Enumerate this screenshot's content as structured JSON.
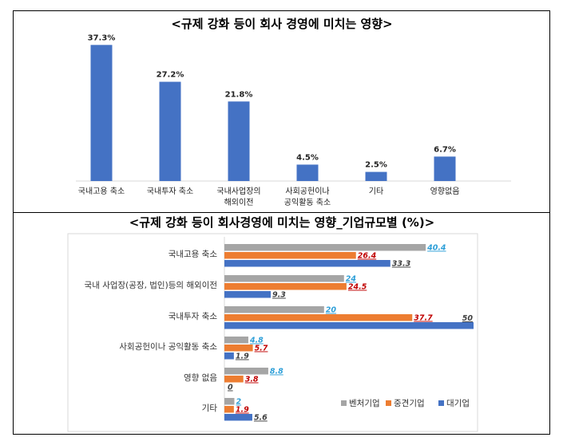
{
  "chart_data": [
    {
      "type": "bar",
      "title": "<규제 강화 등이 회사 경영에 미치는 영향>",
      "categories": [
        [
          "국내고용 축소"
        ],
        [
          "국내투자 축소"
        ],
        [
          "국내사업장의",
          "해외이전"
        ],
        [
          "사회공헌이나",
          "공익활동 축소"
        ],
        [
          "기타"
        ],
        [
          "영향없음"
        ]
      ],
      "values": [
        37.3,
        27.2,
        21.8,
        4.5,
        2.5,
        6.7
      ],
      "value_labels": [
        "37.3%",
        "27.2%",
        "21.8%",
        "4.5%",
        "2.5%",
        "6.7%"
      ],
      "color": "#4472c4",
      "ylim": [
        0,
        40
      ]
    },
    {
      "type": "bar",
      "orientation": "horizontal",
      "title": "<규제 강화 등이 회사경영에 미치는 영향_기업규모별 (%)>",
      "categories": [
        "국내고용 축소",
        "국내 사업장(공장, 법인)등의 해외이전",
        "국내투자 축소",
        "사회공헌이나 공익활동 축소",
        "영향 없음",
        "기타"
      ],
      "series": [
        {
          "name": "벤처기업",
          "values": [
            40.4,
            24,
            20,
            4.8,
            8.8,
            2
          ],
          "labels": [
            "40.4",
            "24",
            "20",
            "4.8",
            "8.8",
            "2"
          ],
          "color": "#a5a5a5",
          "label_color": "#2e9fd8"
        },
        {
          "name": "중견기업",
          "values": [
            26.4,
            24.5,
            37.7,
            5.7,
            3.8,
            1.9
          ],
          "labels": [
            "26.4",
            "24.5",
            "37.7",
            "5.7",
            "3.8",
            "1.9"
          ],
          "color": "#ed7d31",
          "label_color": "#c00000"
        },
        {
          "name": "대기업",
          "values": [
            33.3,
            9.3,
            50,
            1.9,
            0,
            5.6
          ],
          "labels": [
            "33.3",
            "9.3",
            "50",
            "1.9",
            "0",
            "5.6"
          ],
          "color": "#4472c4",
          "label_color": "#404040"
        }
      ],
      "xlim": [
        0,
        50
      ],
      "legend": "bottom-right"
    }
  ]
}
